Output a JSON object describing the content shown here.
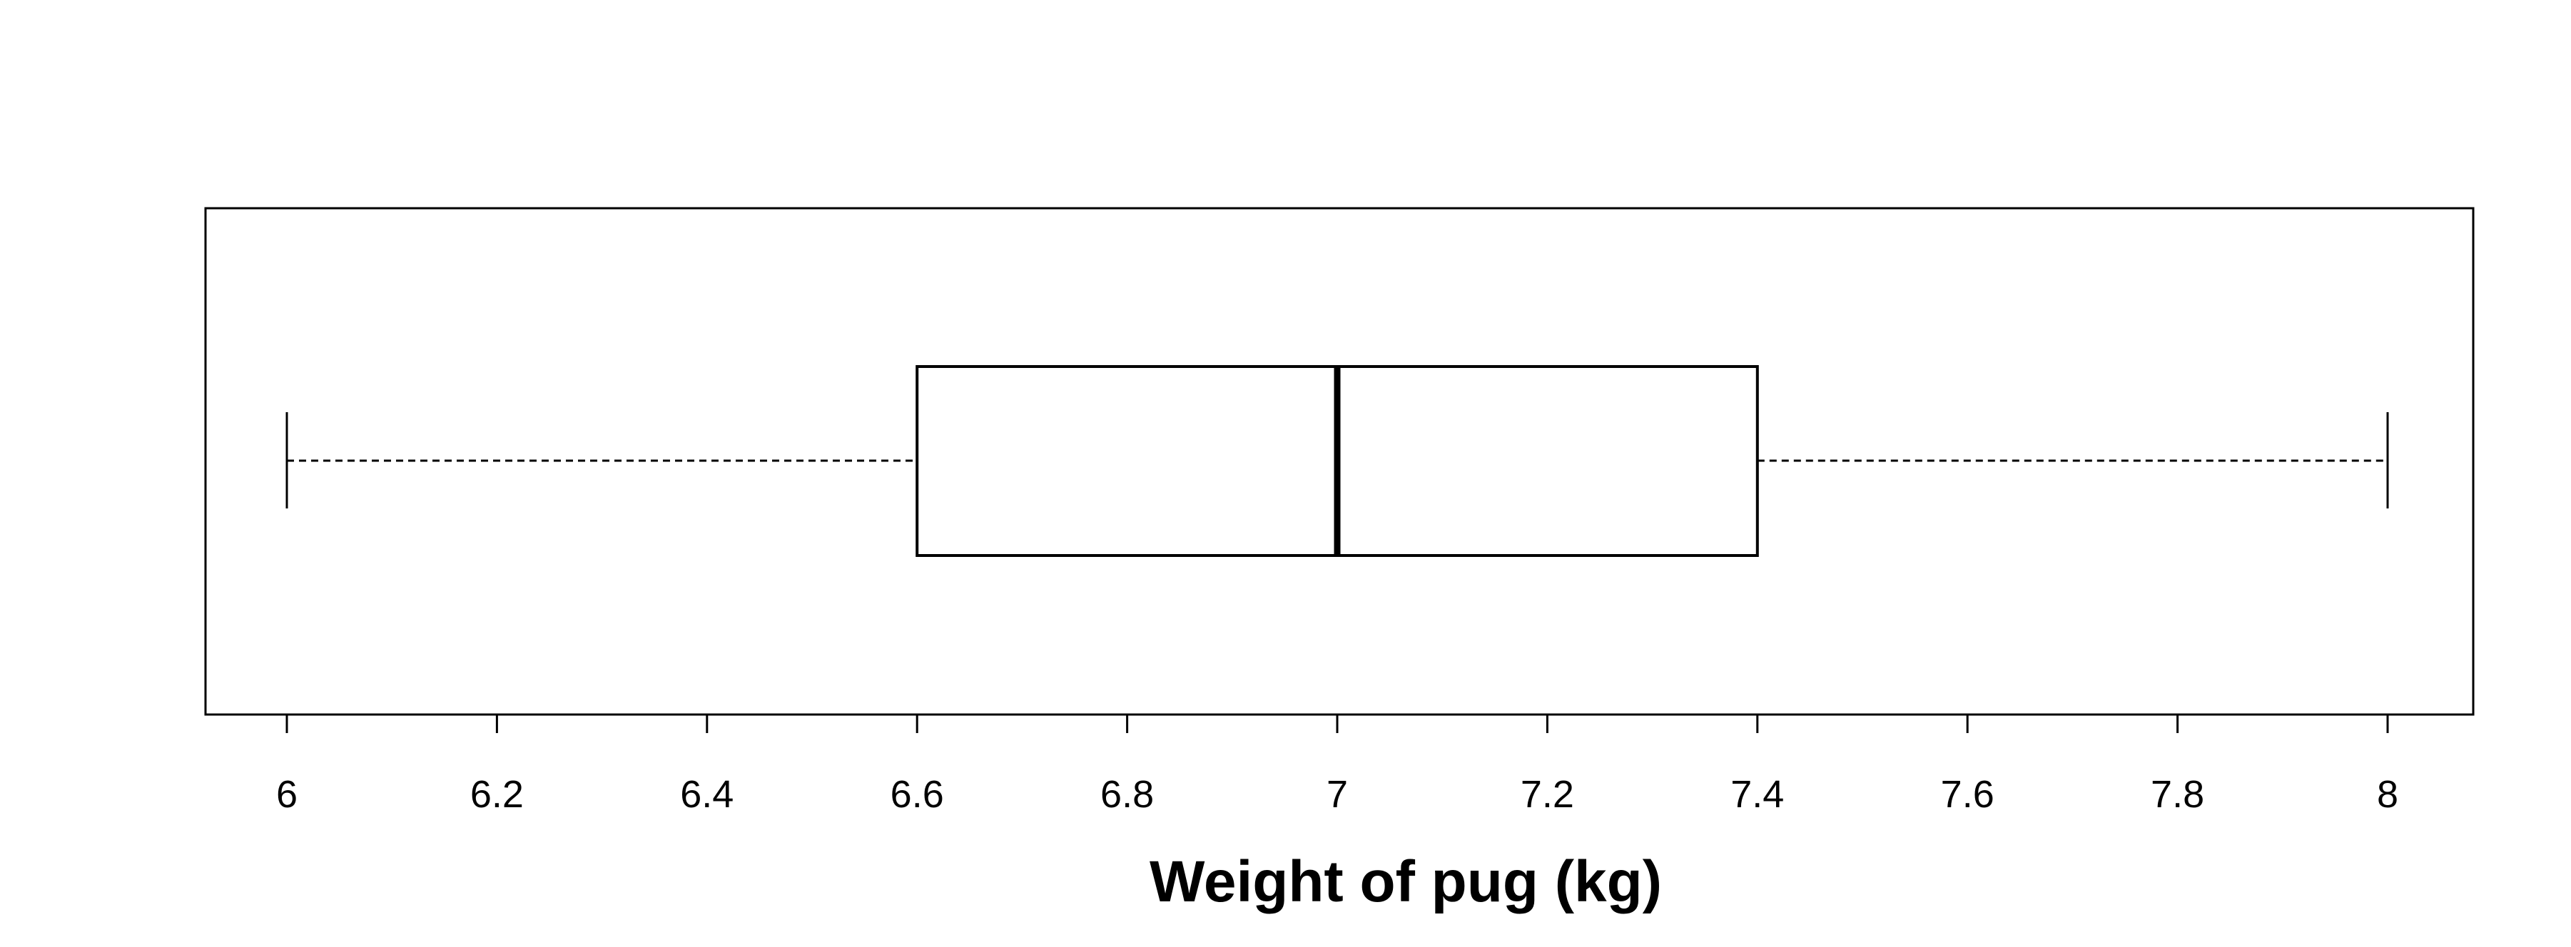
{
  "chart_data": {
    "type": "boxplot",
    "orientation": "horizontal",
    "xlabel": "Weight of pug (kg)",
    "xlim": [
      5.92,
      8.08
    ],
    "ticks": [
      6,
      6.2,
      6.4,
      6.6,
      6.8,
      7,
      7.2,
      7.4,
      7.6,
      7.8,
      8
    ],
    "tick_labels": [
      "6",
      "6.2",
      "6.4",
      "6.6",
      "6.8",
      "7",
      "7.2",
      "7.4",
      "7.6",
      "7.8",
      "8"
    ],
    "box": {
      "min": 6,
      "q1": 6.6,
      "median": 7,
      "q3": 7.4,
      "max": 8
    },
    "grid": false,
    "colors": {
      "stroke": "#000000",
      "fill": "#ffffff"
    }
  }
}
